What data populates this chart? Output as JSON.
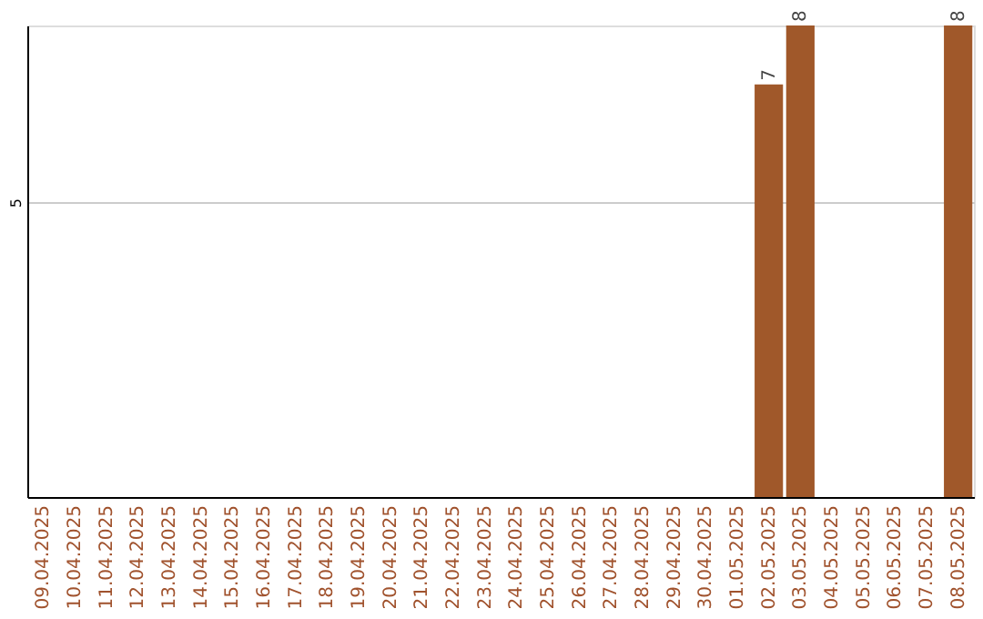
{
  "chart_data": {
    "type": "bar",
    "categories": [
      "09.04.2025",
      "10.04.2025",
      "11.04.2025",
      "12.04.2025",
      "13.04.2025",
      "14.04.2025",
      "15.04.2025",
      "16.04.2025",
      "17.04.2025",
      "18.04.2025",
      "19.04.2025",
      "20.04.2025",
      "21.04.2025",
      "22.04.2025",
      "23.04.2025",
      "24.04.2025",
      "25.04.2025",
      "26.04.2025",
      "27.04.2025",
      "28.04.2025",
      "29.04.2025",
      "30.04.2025",
      "01.05.2025",
      "02.05.2025",
      "03.05.2025",
      "04.05.2025",
      "05.05.2025",
      "06.05.2025",
      "07.05.2025",
      "08.05.2025"
    ],
    "values": [
      null,
      null,
      null,
      null,
      null,
      null,
      null,
      null,
      null,
      null,
      null,
      null,
      null,
      null,
      null,
      null,
      null,
      null,
      null,
      null,
      null,
      null,
      null,
      7,
      8,
      null,
      null,
      null,
      null,
      8
    ],
    "color": "#a0582a",
    "ylim": [
      0,
      8
    ],
    "yticks": [
      5
    ],
    "grid": "y",
    "data_labels": true
  }
}
